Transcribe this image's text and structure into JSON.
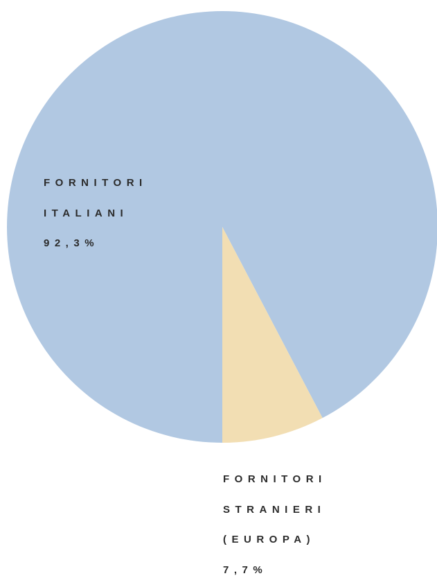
{
  "chart_data": {
    "type": "pie",
    "categories": [
      "FORNITORI ITALIANI",
      "FORNITORI STRANIERI (EUROPA)"
    ],
    "values": [
      92.3,
      7.7
    ],
    "value_labels": [
      "92,3%",
      "7,7%"
    ],
    "colors": [
      "#b1c8e2",
      "#f2deb3"
    ]
  }
}
